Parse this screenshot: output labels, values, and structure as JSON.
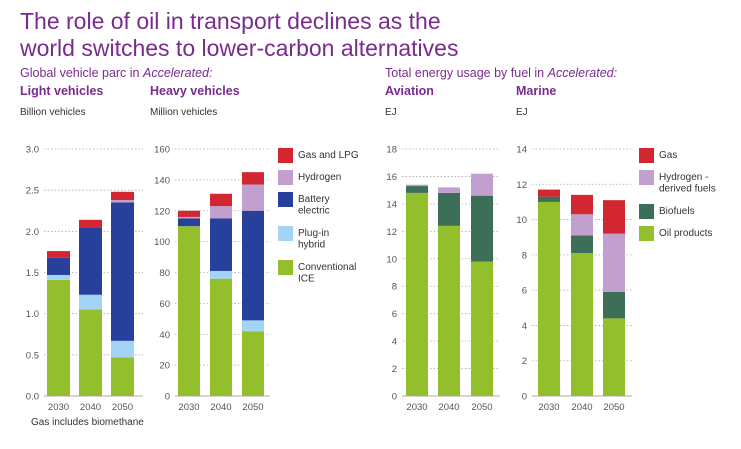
{
  "title_line1": "The role of oil in transport declines as the",
  "title_line2": "world switches to lower-carbon alternatives",
  "left_header_prefix": "Global vehicle parc in ",
  "left_header_scenario": "Accelerated:",
  "right_header_prefix": "Total energy usage by fuel in ",
  "right_header_scenario": "Accelerated:",
  "note": "Gas includes biomethane",
  "colors": {
    "gas": "#d22630",
    "hydrogen": "#c1a0cf",
    "battery": "#27409b",
    "plugin": "#a3d3f5",
    "ice": "#93bf2d",
    "biofuels": "#3c6e58",
    "oil": "#93bf2d"
  },
  "legend_vehicles": [
    {
      "label_lines": [
        "Gas and LPG"
      ],
      "color": "#d22630"
    },
    {
      "label_lines": [
        "Hydrogen"
      ],
      "color": "#c1a0cf"
    },
    {
      "label_lines": [
        "Battery",
        "electric"
      ],
      "color": "#27409b"
    },
    {
      "label_lines": [
        "Plug-in",
        "hybrid"
      ],
      "color": "#a3d3f5"
    },
    {
      "label_lines": [
        "Conventional",
        "ICE"
      ],
      "color": "#93bf2d"
    }
  ],
  "legend_energy": [
    {
      "label_lines": [
        "Gas"
      ],
      "color": "#d22630"
    },
    {
      "label_lines": [
        "Hydrogen -",
        "derived fuels"
      ],
      "color": "#c1a0cf"
    },
    {
      "label_lines": [
        "Biofuels"
      ],
      "color": "#3c6e58"
    },
    {
      "label_lines": [
        "Oil products"
      ],
      "color": "#93bf2d"
    }
  ],
  "chart_data": [
    {
      "type": "bar",
      "stacked": true,
      "title": "Light vehicles",
      "ylabel": "Billion vehicles",
      "categories": [
        "2030",
        "2040",
        "2050"
      ],
      "ylim": [
        0,
        3.0
      ],
      "yticks": [
        "0.0",
        "0.5",
        "1.0",
        "1.5",
        "2.0",
        "2.5",
        "3.0"
      ],
      "series": [
        {
          "name": "Conventional ICE",
          "color": "#93bf2d",
          "values": [
            1.41,
            1.05,
            0.47
          ]
        },
        {
          "name": "Plug-in hybrid",
          "color": "#a3d3f5",
          "values": [
            0.06,
            0.18,
            0.2
          ]
        },
        {
          "name": "Battery electric",
          "color": "#27409b",
          "values": [
            0.21,
            0.82,
            1.68
          ]
        },
        {
          "name": "Hydrogen",
          "color": "#c1a0cf",
          "values": [
            0.0,
            0.0,
            0.03
          ]
        },
        {
          "name": "Gas and LPG",
          "color": "#d22630",
          "values": [
            0.08,
            0.09,
            0.1
          ]
        }
      ]
    },
    {
      "type": "bar",
      "stacked": true,
      "title": "Heavy vehicles",
      "ylabel": "Million vehicles",
      "categories": [
        "2030",
        "2040",
        "2050"
      ],
      "ylim": [
        0,
        160
      ],
      "yticks": [
        "0",
        "20",
        "40",
        "60",
        "80",
        "100",
        "120",
        "140",
        "160"
      ],
      "series": [
        {
          "name": "Conventional ICE",
          "color": "#93bf2d",
          "values": [
            110,
            76,
            42
          ]
        },
        {
          "name": "Plug-in hybrid",
          "color": "#a3d3f5",
          "values": [
            0,
            5,
            7
          ]
        },
        {
          "name": "Battery electric",
          "color": "#27409b",
          "values": [
            5,
            34,
            71
          ]
        },
        {
          "name": "Hydrogen",
          "color": "#c1a0cf",
          "values": [
            1,
            8,
            17
          ]
        },
        {
          "name": "Gas and LPG",
          "color": "#d22630",
          "values": [
            4,
            8,
            8
          ]
        }
      ]
    },
    {
      "type": "bar",
      "stacked": true,
      "title": "Aviation",
      "ylabel": "EJ",
      "categories": [
        "2030",
        "2040",
        "2050"
      ],
      "ylim": [
        0,
        18
      ],
      "yticks": [
        "0",
        "2",
        "4",
        "6",
        "8",
        "10",
        "12",
        "14",
        "16",
        "18"
      ],
      "series": [
        {
          "name": "Oil products",
          "color": "#93bf2d",
          "values": [
            14.8,
            12.4,
            9.8
          ]
        },
        {
          "name": "Biofuels",
          "color": "#3c6e58",
          "values": [
            0.5,
            2.4,
            4.8
          ]
        },
        {
          "name": "Hydrogen - derived fuels",
          "color": "#c1a0cf",
          "values": [
            0.1,
            0.4,
            1.6
          ]
        }
      ]
    },
    {
      "type": "bar",
      "stacked": true,
      "title": "Marine",
      "ylabel": "EJ",
      "categories": [
        "2030",
        "2040",
        "2050"
      ],
      "ylim": [
        0,
        14
      ],
      "yticks": [
        "0",
        "2",
        "4",
        "6",
        "8",
        "10",
        "12",
        "14"
      ],
      "series": [
        {
          "name": "Oil products",
          "color": "#93bf2d",
          "values": [
            11.0,
            8.1,
            4.4
          ]
        },
        {
          "name": "Biofuels",
          "color": "#3c6e58",
          "values": [
            0.3,
            1.0,
            1.5
          ]
        },
        {
          "name": "Hydrogen - derived fuels",
          "color": "#c1a0cf",
          "values": [
            0.0,
            1.2,
            3.3
          ]
        },
        {
          "name": "Gas",
          "color": "#d22630",
          "values": [
            0.4,
            1.1,
            1.9
          ]
        }
      ]
    }
  ]
}
